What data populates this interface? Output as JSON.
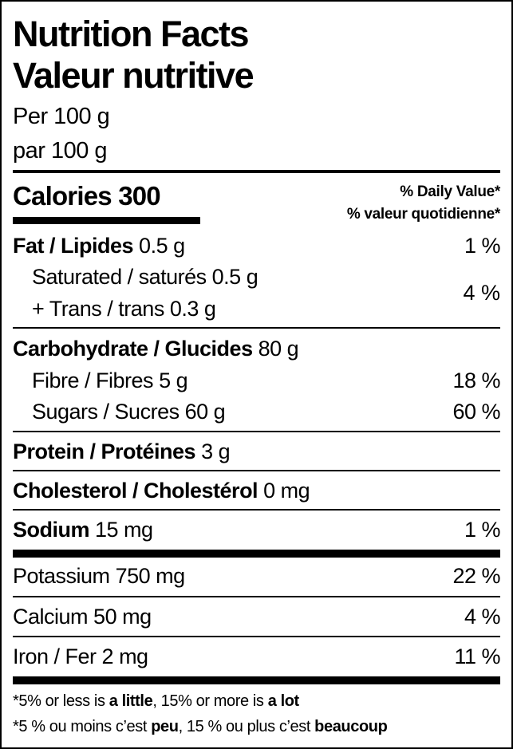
{
  "header": {
    "title_en": "Nutrition Facts",
    "title_fr": "Valeur nutritive",
    "serving_en": "Per 100 g",
    "serving_fr": "par 100 g"
  },
  "calories": {
    "label": "Calories",
    "value": "300"
  },
  "daily_value": {
    "en": "% Daily Value*",
    "fr": "% valeur quotidienne*"
  },
  "nutrients": {
    "fat": {
      "label": "Fat / Lipides",
      "amount": "0.5 g",
      "dv": "1 %"
    },
    "saturated": {
      "label": "Saturated / saturés",
      "amount": "0.5 g"
    },
    "trans": {
      "label": "+ Trans / trans",
      "amount": "0.3 g",
      "dv": "4 %"
    },
    "carbohydrate": {
      "label": "Carbohydrate / Glucides",
      "amount": "80 g"
    },
    "fibre": {
      "label": "Fibre / Fibres",
      "amount": "5 g",
      "dv": "18 %"
    },
    "sugars": {
      "label": "Sugars / Sucres",
      "amount": "60 g",
      "dv": "60 %"
    },
    "protein": {
      "label": "Protein / Protéines",
      "amount": "3 g"
    },
    "cholesterol": {
      "label": "Cholesterol / Cholestérol",
      "amount": "0 mg"
    },
    "sodium": {
      "label": "Sodium",
      "amount": "15 mg",
      "dv": "1 %"
    },
    "potassium": {
      "label": "Potassium",
      "amount": "750 mg",
      "dv": "22 %"
    },
    "calcium": {
      "label": "Calcium",
      "amount": "50 mg",
      "dv": "4 %"
    },
    "iron": {
      "label": "Iron / Fer",
      "amount": "2 mg",
      "dv": "11 %"
    }
  },
  "footnote": {
    "en": {
      "a": "*5% or less is ",
      "b": "a little",
      "c": ", 15% or more is ",
      "d": "a lot"
    },
    "fr": {
      "a": "*5 % ou moins c’est ",
      "b": "peu",
      "c": ", 15 % ou plus c’est ",
      "d": "beaucoup"
    }
  }
}
